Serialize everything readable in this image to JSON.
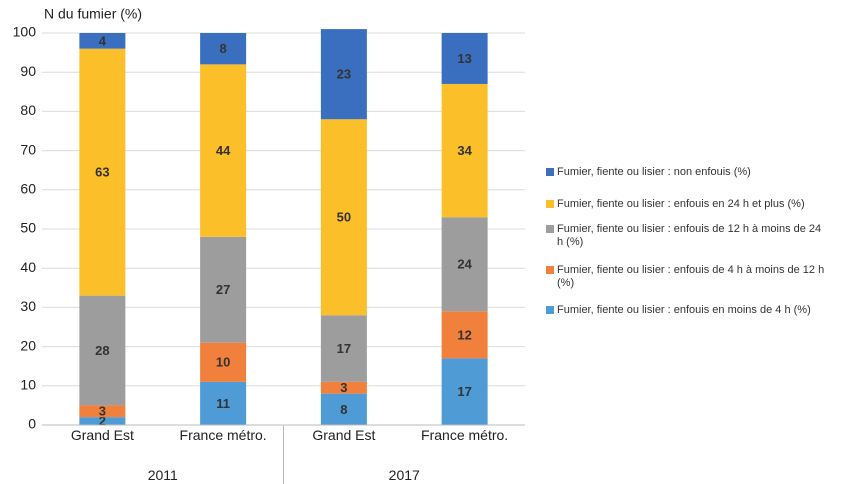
{
  "chart_data": {
    "type": "stacked_bar",
    "y_axis_label": "N du fumier (%)",
    "categories": [
      "Grand Est",
      "France métro.",
      "Grand Est",
      "France métro."
    ],
    "groups": [
      {
        "label": "2011",
        "size": 2
      },
      {
        "label": "2017",
        "size": 2
      }
    ],
    "series": [
      {
        "name": "Fumier, fiente ou lisier : enfouis en moins de 4 h (%)",
        "color": "#4e9bd6",
        "values": [
          2,
          11,
          8,
          17
        ]
      },
      {
        "name": "Fumier, fiente ou lisier : enfouis de 4 h à moins de 12 h (%)",
        "color": "#f0803c",
        "values": [
          3,
          10,
          3,
          12
        ]
      },
      {
        "name": "Fumier, fiente ou lisier : enfouis de 12 h à moins de 24 h (%)",
        "color": "#9d9d9d",
        "values": [
          28,
          27,
          17,
          24
        ]
      },
      {
        "name": "Fumier, fiente ou lisier : enfouis en 24 h et plus (%)",
        "color": "#fbbf2a",
        "values": [
          63,
          44,
          50,
          34
        ]
      },
      {
        "name": "Fumier, fiente ou lisier : non enfouis (%)",
        "color": "#3a6fbf",
        "values": [
          4,
          8,
          23,
          13
        ]
      }
    ],
    "ylim": [
      0,
      100
    ],
    "yticks": [
      0,
      10,
      20,
      30,
      40,
      50,
      60,
      70,
      80,
      90,
      100
    ],
    "grid": true
  }
}
